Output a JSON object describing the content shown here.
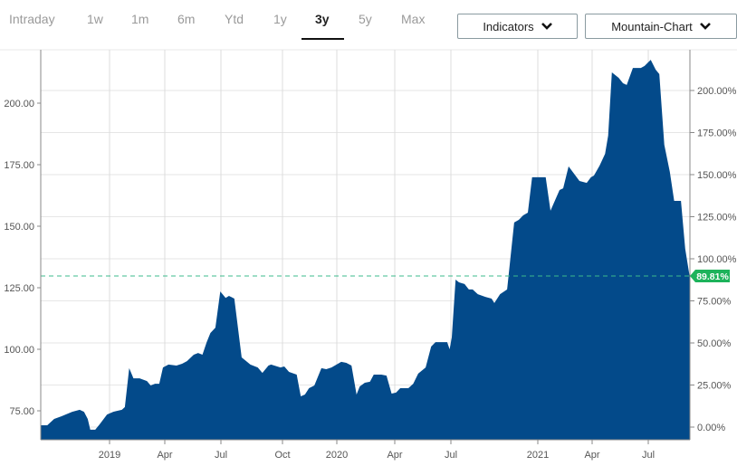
{
  "toolbar": {
    "ranges": [
      "Intraday",
      "1w",
      "1m",
      "6m",
      "Ytd",
      "1y",
      "3y",
      "5y",
      "Max"
    ],
    "active_range": "3y",
    "indicators_label": "Indicators",
    "chart_type_label": "Mountain-Chart"
  },
  "colors": {
    "fill": "#034a8a",
    "close_line": "#3dbb8c",
    "badge": "#1db35b",
    "grid": "#e6e6e6"
  },
  "chart_data": {
    "type": "area",
    "title": "",
    "xlabel": "",
    "ylabel": "",
    "ylim": [
      63,
      221
    ],
    "left_ticks": [
      "75.00",
      "100.00",
      "125.00",
      "150.00",
      "175.00",
      "200.00"
    ],
    "right_ticks": [
      "0.00%",
      "25.00%",
      "50.00%",
      "75.00%",
      "100.00%",
      "125.00%",
      "150.00%",
      "175.00%",
      "200.00%"
    ],
    "x_ticks": [
      {
        "label": "2019",
        "date": "2019-01-01"
      },
      {
        "label": "Apr",
        "date": "2019-04-01"
      },
      {
        "label": "Jul",
        "date": "2019-07-01"
      },
      {
        "label": "Oct",
        "date": "2019-10-01"
      },
      {
        "label": "2020",
        "date": "2020-01-01"
      },
      {
        "label": "Apr",
        "date": "2020-04-01"
      },
      {
        "label": "Jul",
        "date": "2020-07-01"
      },
      {
        "label": "2021",
        "date": "2021-01-01"
      },
      {
        "label": "Apr",
        "date": "2021-04-01"
      },
      {
        "label": "Jul",
        "date": "2021-07-01"
      }
    ],
    "change_label": "89.81%",
    "change_pct": 89.81,
    "grid": true,
    "series": [
      {
        "x": [
          "2018-09-13",
          "2018-09-23",
          "2018-10-04",
          "2018-10-16",
          "2018-11-02",
          "2018-11-14",
          "2018-11-21",
          "2018-11-27",
          "2018-12-01",
          "2018-12-09",
          "2018-12-16",
          "2018-12-28",
          "2019-01-07",
          "2019-01-21",
          "2019-01-26",
          "2019-02-02",
          "2019-02-09",
          "2019-02-19",
          "2019-03-03",
          "2019-03-09",
          "2019-03-16",
          "2019-03-23",
          "2019-03-29",
          "2019-04-07",
          "2019-04-20",
          "2019-04-29",
          "2019-05-07",
          "2019-05-18",
          "2019-05-25",
          "2019-06-01",
          "2019-06-08",
          "2019-06-14",
          "2019-06-22",
          "2019-06-30",
          "2019-07-08",
          "2019-07-13",
          "2019-07-21",
          "2019-08-01",
          "2019-08-06",
          "2019-08-14",
          "2019-08-25",
          "2019-09-01",
          "2019-09-10",
          "2019-09-14",
          "2019-09-28",
          "2019-10-04",
          "2019-10-12",
          "2019-10-25",
          "2019-11-01",
          "2019-11-08",
          "2019-11-15",
          "2019-11-24",
          "2019-12-06",
          "2019-12-14",
          "2019-12-23",
          "2020-01-08",
          "2020-01-16",
          "2020-01-24",
          "2020-02-01",
          "2020-02-06",
          "2020-02-14",
          "2020-02-22",
          "2020-02-28",
          "2020-03-11",
          "2020-03-19",
          "2020-03-27",
          "2020-04-03",
          "2020-04-10",
          "2020-04-23",
          "2020-05-01",
          "2020-05-09",
          "2020-05-21",
          "2020-05-30",
          "2020-06-06",
          "2020-06-25",
          "2020-06-29",
          "2020-07-03",
          "2020-07-11",
          "2020-07-18",
          "2020-07-30",
          "2020-08-08",
          "2020-08-16",
          "2020-08-27",
          "2020-09-12",
          "2020-09-25",
          "2020-10-01",
          "2020-10-13",
          "2020-10-28",
          "2020-11-12",
          "2020-11-22",
          "2020-12-01",
          "2020-12-11",
          "2020-12-20",
          "2021-01-08",
          "2021-01-14",
          "2021-01-22",
          "2021-02-06",
          "2021-02-12",
          "2021-02-21",
          "2021-03-11",
          "2021-03-23",
          "2021-03-30",
          "2021-04-04",
          "2021-04-13",
          "2021-04-22",
          "2021-04-27",
          "2021-05-03",
          "2021-05-14",
          "2021-05-21",
          "2021-05-27",
          "2021-06-06",
          "2021-06-19",
          "2021-06-25",
          "2021-07-05",
          "2021-07-13",
          "2021-07-19",
          "2021-07-27",
          "2021-08-05",
          "2021-08-12",
          "2021-08-17",
          "2021-08-23",
          "2021-08-30",
          "2021-09-06"
        ],
        "y": [
          69.1,
          69.1,
          71.7,
          72.8,
          74.6,
          75.4,
          74.6,
          71.7,
          67.3,
          67.3,
          69.5,
          73.5,
          74.6,
          75.4,
          76.5,
          92.3,
          88.2,
          88.2,
          87.1,
          85.3,
          86.0,
          86.0,
          92.6,
          93.8,
          93.4,
          94.1,
          95.2,
          97.8,
          98.5,
          97.8,
          102.9,
          106.6,
          108.8,
          123.5,
          120.9,
          121.7,
          120.6,
          96.7,
          95.6,
          93.8,
          92.6,
          90.4,
          93.4,
          93.8,
          92.6,
          93.0,
          90.8,
          89.7,
          80.9,
          81.6,
          84.2,
          85.3,
          92.3,
          91.9,
          92.6,
          94.9,
          94.5,
          93.4,
          81.6,
          84.9,
          86.4,
          86.8,
          89.7,
          89.7,
          89.3,
          82.0,
          82.4,
          84.2,
          84.2,
          86.0,
          90.1,
          92.6,
          101.1,
          102.9,
          102.9,
          100.0,
          104.8,
          128.3,
          127.2,
          126.5,
          124.3,
          124.3,
          122.4,
          121.3,
          120.6,
          118.8,
          122.4,
          124.3,
          151.5,
          152.6,
          154.4,
          155.5,
          169.9,
          169.9,
          169.9,
          156.3,
          164.7,
          165.4,
          174.3,
          168.4,
          167.6,
          169.9,
          170.6,
          174.6,
          179.4,
          186.8,
          212.5,
          210.3,
          208.1,
          207.4,
          214.3,
          214.3,
          215.1,
          217.6,
          213.6,
          211.8,
          183.1,
          172.1,
          160.3,
          160.3,
          160.3,
          140.8,
          129.8
        ]
      }
    ]
  }
}
